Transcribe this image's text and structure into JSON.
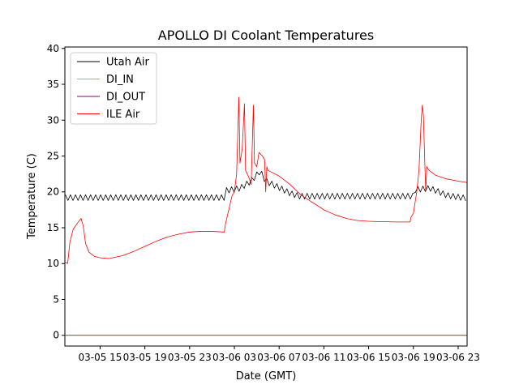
{
  "chart_data": {
    "type": "line",
    "title": "APOLLO DI Coolant Temperatures",
    "xlabel": "Date (GMT)",
    "ylabel": "Temperature (C)",
    "x_ticks": [
      "03-05 15",
      "03-05 19",
      "03-05 23",
      "03-06 03",
      "03-06 07",
      "03-06 11",
      "03-06 15",
      "03-06 19",
      "03-06 23"
    ],
    "x_tick_hours": [
      15,
      19,
      23,
      27,
      31,
      35,
      39,
      43,
      47
    ],
    "xlim_hours": [
      11.85,
      47.8
    ],
    "ylim": [
      -1.5,
      40.2
    ],
    "y_ticks": [
      0,
      5,
      10,
      15,
      20,
      25,
      30,
      35,
      40
    ],
    "grid": false,
    "legend_position": "top-left",
    "series": [
      {
        "name": "Utah Air",
        "color": "#000000",
        "baseline": [
          [
            11.9,
            19.2
          ],
          [
            26.2,
            19.2
          ],
          [
            26.3,
            20.2
          ],
          [
            27.5,
            20.5
          ],
          [
            28.5,
            21.5
          ],
          [
            29.3,
            22.9
          ],
          [
            29.8,
            21.5
          ],
          [
            31.0,
            20.6
          ],
          [
            32.0,
            19.8
          ],
          [
            32.8,
            19.4
          ],
          [
            43.0,
            19.4
          ],
          [
            43.1,
            20.3
          ],
          [
            44.5,
            20.5
          ],
          [
            45.3,
            20.0
          ],
          [
            46.0,
            19.5
          ],
          [
            47.8,
            19.1
          ]
        ],
        "oscillation_amplitude": 0.4,
        "oscillation_period_hours": 0.45
      },
      {
        "name": "DI_IN",
        "color": "#d4b000",
        "points": [
          [
            11.9,
            0
          ],
          [
            47.8,
            0
          ]
        ]
      },
      {
        "name": "DI_OUT",
        "color": "#800080",
        "points": [
          [
            11.9,
            0
          ],
          [
            47.8,
            0
          ]
        ]
      },
      {
        "name": "ILE Air",
        "color": "#ff0000",
        "points": [
          [
            11.9,
            10.2
          ],
          [
            12.1,
            10.0
          ],
          [
            12.3,
            13.0
          ],
          [
            12.6,
            14.8
          ],
          [
            13.0,
            15.7
          ],
          [
            13.3,
            16.3
          ],
          [
            13.5,
            15.2
          ],
          [
            13.7,
            12.8
          ],
          [
            14.0,
            11.6
          ],
          [
            14.5,
            11.0
          ],
          [
            15.0,
            10.8
          ],
          [
            15.8,
            10.7
          ],
          [
            17.0,
            11.1
          ],
          [
            18.0,
            11.7
          ],
          [
            19.0,
            12.4
          ],
          [
            20.0,
            13.1
          ],
          [
            21.0,
            13.7
          ],
          [
            22.0,
            14.1
          ],
          [
            23.0,
            14.4
          ],
          [
            24.0,
            14.5
          ],
          [
            25.0,
            14.5
          ],
          [
            26.0,
            14.4
          ],
          [
            26.1,
            14.4
          ],
          [
            26.2,
            15.5
          ],
          [
            26.5,
            17.5
          ],
          [
            26.8,
            19.5
          ],
          [
            27.0,
            20.0
          ],
          [
            27.2,
            22.5
          ],
          [
            27.4,
            33.2
          ],
          [
            27.5,
            24.0
          ],
          [
            27.7,
            26.0
          ],
          [
            27.9,
            32.3
          ],
          [
            28.0,
            23.0
          ],
          [
            28.3,
            22.0
          ],
          [
            28.5,
            21.0
          ],
          [
            28.7,
            32.1
          ],
          [
            28.8,
            24.0
          ],
          [
            29.0,
            23.5
          ],
          [
            29.2,
            25.5
          ],
          [
            29.5,
            25.0
          ],
          [
            29.7,
            24.5
          ],
          [
            29.8,
            20.0
          ],
          [
            29.9,
            23.5
          ],
          [
            30.0,
            23.0
          ],
          [
            31.0,
            22.2
          ],
          [
            32.0,
            21.0
          ],
          [
            33.0,
            19.5
          ],
          [
            34.0,
            18.5
          ],
          [
            35.0,
            17.5
          ],
          [
            36.0,
            16.8
          ],
          [
            37.0,
            16.3
          ],
          [
            38.0,
            16.0
          ],
          [
            39.0,
            15.9
          ],
          [
            40.0,
            15.85
          ],
          [
            41.5,
            15.8
          ],
          [
            42.7,
            15.8
          ],
          [
            42.8,
            16.5
          ],
          [
            43.0,
            17.0
          ],
          [
            43.3,
            20.0
          ],
          [
            43.5,
            23.0
          ],
          [
            43.7,
            30.0
          ],
          [
            43.8,
            32.1
          ],
          [
            43.9,
            30.5
          ],
          [
            44.0,
            25.0
          ],
          [
            44.1,
            20.2
          ],
          [
            44.2,
            23.5
          ],
          [
            44.4,
            23.0
          ],
          [
            45.0,
            22.3
          ],
          [
            46.0,
            21.8
          ],
          [
            47.0,
            21.5
          ],
          [
            47.8,
            21.3
          ]
        ]
      }
    ]
  }
}
